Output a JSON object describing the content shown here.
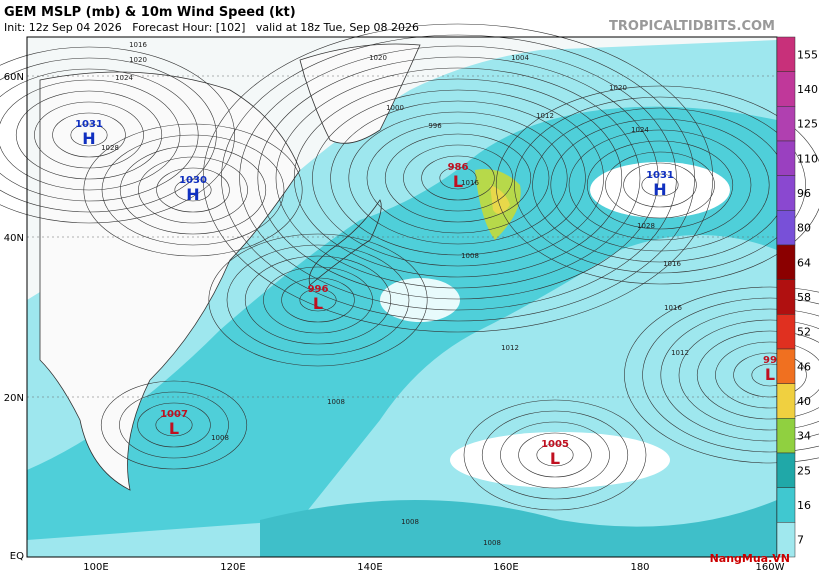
{
  "header": {
    "title": "GEM MSLP (mb) & 10m Wind Speed (kt)",
    "subtitle": "Init: 12z Sep 04 2026   Forecast Hour: [102]   valid at 18z Tue, Sep 08 2026",
    "source": "TROPICALTIDBITS.COM"
  },
  "lat_labels": [
    "60N",
    "40N",
    "20N",
    "EQ"
  ],
  "lon_labels": [
    "100E",
    "120E",
    "140E",
    "160E",
    "180",
    "160W"
  ],
  "colorbar": [
    "155",
    "140",
    "125",
    "110",
    "96",
    "80",
    "64",
    "58",
    "52",
    "46",
    "40",
    "34",
    "25",
    "16",
    "7"
  ],
  "centers": [
    {
      "kind": "H",
      "value": "1031"
    },
    {
      "kind": "H",
      "value": "1030"
    },
    {
      "kind": "H",
      "value": "1031"
    },
    {
      "kind": "L",
      "value": "986"
    },
    {
      "kind": "L",
      "value": "996"
    },
    {
      "kind": "L",
      "value": "1007"
    },
    {
      "kind": "L",
      "value": "1005"
    },
    {
      "kind": "L",
      "value": "99"
    }
  ],
  "isobar_labels": [
    "1016",
    "1020",
    "1024",
    "1028",
    "1012",
    "1008",
    "1004",
    "1000",
    "996",
    "1016",
    "1020",
    "1024",
    "1028",
    "1016",
    "1012",
    "1008",
    "1008",
    "1008",
    "1008",
    "1012",
    "1016",
    "1020"
  ],
  "watermark": "NangMua.VN"
}
